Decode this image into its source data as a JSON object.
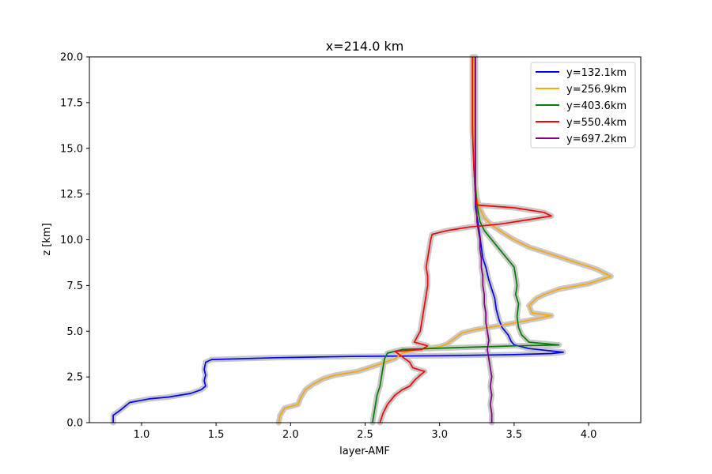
{
  "chart_data": {
    "type": "line",
    "title": "x=214.0 km",
    "xlabel": "layer-AMF",
    "ylabel": "z [km]",
    "xlim": [
      0.65,
      4.35
    ],
    "ylim": [
      0,
      20
    ],
    "xticks": [
      "1.0",
      "1.5",
      "2.0",
      "2.5",
      "3.0",
      "3.5",
      "4.0"
    ],
    "yticks": [
      "0.0",
      "2.5",
      "5.0",
      "7.5",
      "10.0",
      "12.5",
      "15.0",
      "17.5",
      "20.0"
    ],
    "legend_position": "top-right",
    "grid": false,
    "uncertainty_color": "#c8c8c8",
    "series": [
      {
        "name": "y=132.1km",
        "color": "#0000ff",
        "points": [
          [
            0.81,
            0.0
          ],
          [
            0.81,
            0.4
          ],
          [
            0.86,
            0.7
          ],
          [
            0.92,
            1.1
          ],
          [
            1.05,
            1.3
          ],
          [
            1.18,
            1.4
          ],
          [
            1.33,
            1.6
          ],
          [
            1.4,
            1.8
          ],
          [
            1.43,
            2.0
          ],
          [
            1.42,
            2.3
          ],
          [
            1.43,
            2.6
          ],
          [
            1.42,
            2.9
          ],
          [
            1.43,
            3.3
          ],
          [
            1.47,
            3.45
          ],
          [
            1.9,
            3.55
          ],
          [
            2.4,
            3.62
          ],
          [
            3.0,
            3.66
          ],
          [
            3.5,
            3.72
          ],
          [
            3.75,
            3.78
          ],
          [
            3.83,
            3.85
          ],
          [
            3.6,
            4.05
          ],
          [
            3.5,
            4.25
          ],
          [
            3.48,
            4.45
          ],
          [
            3.46,
            4.8
          ],
          [
            3.42,
            5.2
          ],
          [
            3.4,
            5.6
          ],
          [
            3.38,
            6.2
          ],
          [
            3.37,
            6.8
          ],
          [
            3.35,
            7.3
          ],
          [
            3.33,
            7.8
          ],
          [
            3.31,
            8.5
          ],
          [
            3.29,
            9.0
          ],
          [
            3.28,
            9.6
          ],
          [
            3.27,
            10.2
          ],
          [
            3.26,
            10.8
          ],
          [
            3.25,
            11.3
          ],
          [
            3.24,
            11.8
          ],
          [
            3.24,
            12.5
          ],
          [
            3.23,
            14
          ],
          [
            3.23,
            16
          ],
          [
            3.23,
            18
          ],
          [
            3.23,
            20
          ]
        ]
      },
      {
        "name": "y=256.9km",
        "color": "#ffa500",
        "points": [
          [
            1.92,
            0.0
          ],
          [
            1.93,
            0.4
          ],
          [
            1.96,
            0.8
          ],
          [
            2.05,
            1.0
          ],
          [
            2.07,
            1.4
          ],
          [
            2.1,
            1.8
          ],
          [
            2.15,
            2.1
          ],
          [
            2.22,
            2.4
          ],
          [
            2.3,
            2.6
          ],
          [
            2.45,
            2.8
          ],
          [
            2.6,
            3.2
          ],
          [
            2.7,
            3.5
          ],
          [
            2.75,
            3.8
          ],
          [
            2.85,
            4.0
          ],
          [
            3.0,
            4.15
          ],
          [
            3.05,
            4.3
          ],
          [
            3.1,
            4.6
          ],
          [
            3.15,
            4.9
          ],
          [
            3.25,
            5.1
          ],
          [
            3.4,
            5.3
          ],
          [
            3.6,
            5.6
          ],
          [
            3.75,
            5.85
          ],
          [
            3.62,
            6.0
          ],
          [
            3.6,
            6.4
          ],
          [
            3.65,
            6.8
          ],
          [
            3.7,
            7.0
          ],
          [
            3.8,
            7.3
          ],
          [
            4.0,
            7.6
          ],
          [
            4.15,
            8.0
          ],
          [
            4.05,
            8.4
          ],
          [
            3.9,
            8.8
          ],
          [
            3.75,
            9.2
          ],
          [
            3.6,
            9.6
          ],
          [
            3.5,
            10.0
          ],
          [
            3.42,
            10.4
          ],
          [
            3.35,
            10.8
          ],
          [
            3.3,
            11.2
          ],
          [
            3.27,
            11.7
          ],
          [
            3.25,
            12.3
          ],
          [
            3.24,
            13
          ],
          [
            3.23,
            15
          ],
          [
            3.23,
            17
          ],
          [
            3.23,
            20
          ]
        ]
      },
      {
        "name": "y=403.6km",
        "color": "#008000",
        "points": [
          [
            2.55,
            0.0
          ],
          [
            2.56,
            0.5
          ],
          [
            2.57,
            1.0
          ],
          [
            2.58,
            1.5
          ],
          [
            2.6,
            2.0
          ],
          [
            2.61,
            2.5
          ],
          [
            2.62,
            3.0
          ],
          [
            2.63,
            3.5
          ],
          [
            2.65,
            3.8
          ],
          [
            2.75,
            4.0
          ],
          [
            3.1,
            4.1
          ],
          [
            3.5,
            4.2
          ],
          [
            3.8,
            4.25
          ],
          [
            3.6,
            4.4
          ],
          [
            3.55,
            4.8
          ],
          [
            3.53,
            5.2
          ],
          [
            3.52,
            5.8
          ],
          [
            3.53,
            6.5
          ],
          [
            3.51,
            7.0
          ],
          [
            3.52,
            7.5
          ],
          [
            3.51,
            8.0
          ],
          [
            3.5,
            8.5
          ],
          [
            3.45,
            9.0
          ],
          [
            3.4,
            9.5
          ],
          [
            3.35,
            10.0
          ],
          [
            3.3,
            10.5
          ],
          [
            3.27,
            11.0
          ],
          [
            3.26,
            11.5
          ],
          [
            3.25,
            12.0
          ],
          [
            3.24,
            13
          ],
          [
            3.24,
            15
          ],
          [
            3.24,
            17
          ],
          [
            3.24,
            20
          ]
        ]
      },
      {
        "name": "y=550.4km",
        "color": "#ff0000",
        "points": [
          [
            2.6,
            0.0
          ],
          [
            2.62,
            0.5
          ],
          [
            2.65,
            1.0
          ],
          [
            2.7,
            1.5
          ],
          [
            2.75,
            1.8
          ],
          [
            2.8,
            2.0
          ],
          [
            2.83,
            2.3
          ],
          [
            2.87,
            2.6
          ],
          [
            2.9,
            2.8
          ],
          [
            2.82,
            3.0
          ],
          [
            2.8,
            3.3
          ],
          [
            2.75,
            3.6
          ],
          [
            2.7,
            3.9
          ],
          [
            2.88,
            4.0
          ],
          [
            2.92,
            4.2
          ],
          [
            2.83,
            4.4
          ],
          [
            2.85,
            4.7
          ],
          [
            2.87,
            5.0
          ],
          [
            2.88,
            5.5
          ],
          [
            2.89,
            6.0
          ],
          [
            2.9,
            6.5
          ],
          [
            2.91,
            7.0
          ],
          [
            2.92,
            7.5
          ],
          [
            2.92,
            8.0
          ],
          [
            2.91,
            8.5
          ],
          [
            2.92,
            9.0
          ],
          [
            2.93,
            9.5
          ],
          [
            2.94,
            10.0
          ],
          [
            2.95,
            10.3
          ],
          [
            3.05,
            10.5
          ],
          [
            3.2,
            10.7
          ],
          [
            3.4,
            10.85
          ],
          [
            3.6,
            11.1
          ],
          [
            3.75,
            11.3
          ],
          [
            3.7,
            11.5
          ],
          [
            3.5,
            11.75
          ],
          [
            3.25,
            11.9
          ],
          [
            3.24,
            12.5
          ],
          [
            3.23,
            14
          ],
          [
            3.22,
            16
          ],
          [
            3.22,
            18
          ],
          [
            3.22,
            20
          ]
        ]
      },
      {
        "name": "y=697.2km",
        "color": "#800080",
        "points": [
          [
            3.35,
            0.0
          ],
          [
            3.35,
            0.5
          ],
          [
            3.34,
            1.0
          ],
          [
            3.35,
            1.5
          ],
          [
            3.34,
            2.0
          ],
          [
            3.35,
            2.5
          ],
          [
            3.34,
            3.0
          ],
          [
            3.33,
            3.5
          ],
          [
            3.32,
            4.0
          ],
          [
            3.33,
            4.5
          ],
          [
            3.32,
            5.0
          ],
          [
            3.31,
            5.5
          ],
          [
            3.31,
            6.0
          ],
          [
            3.3,
            6.5
          ],
          [
            3.3,
            7.0
          ],
          [
            3.29,
            7.5
          ],
          [
            3.29,
            8.0
          ],
          [
            3.28,
            8.5
          ],
          [
            3.28,
            9.0
          ],
          [
            3.27,
            9.5
          ],
          [
            3.27,
            10.0
          ],
          [
            3.26,
            10.5
          ],
          [
            3.25,
            11.0
          ],
          [
            3.25,
            11.5
          ],
          [
            3.24,
            12.0
          ],
          [
            3.24,
            13
          ],
          [
            3.24,
            15
          ],
          [
            3.24,
            17
          ],
          [
            3.24,
            20
          ]
        ]
      }
    ]
  }
}
